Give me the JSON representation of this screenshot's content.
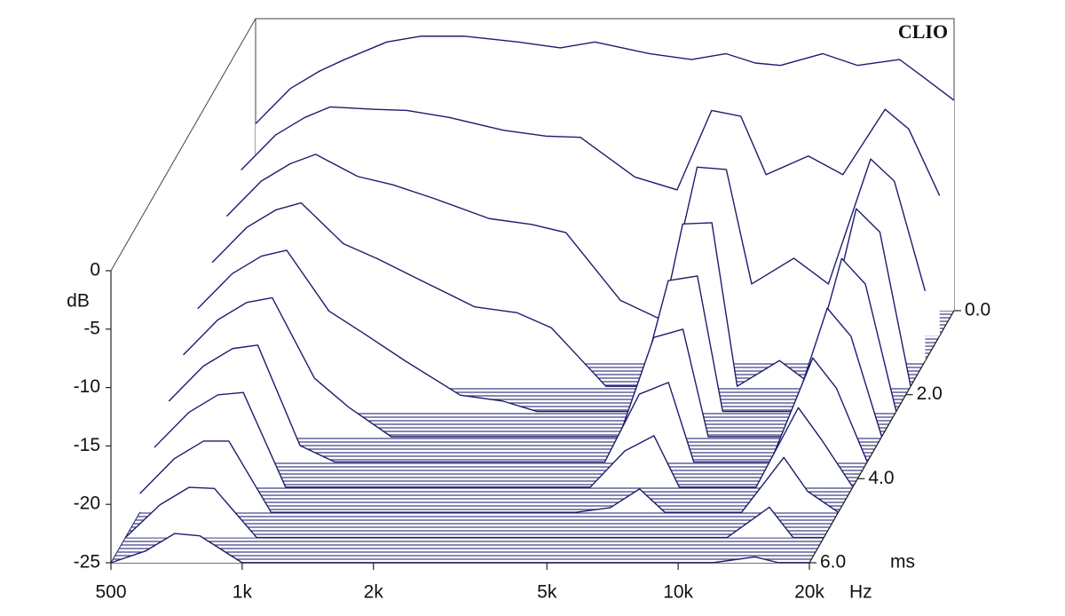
{
  "chart_data": {
    "type": "waterfall",
    "title": "CLIO",
    "xlabel": "Hz",
    "ylabel": "dB",
    "zlabel": "ms",
    "xscale": "log",
    "color": "#1c1c6e",
    "xlim": [
      500,
      20000
    ],
    "xticks": [
      500,
      {
        "value": 1000,
        "label": "1k"
      },
      {
        "value": 2000,
        "label": "2k"
      },
      {
        "value": 5000,
        "label": "5k"
      },
      {
        "value": 10000,
        "label": "10k"
      },
      {
        "value": 20000,
        "label": "20k"
      }
    ],
    "ylim": [
      -25,
      0
    ],
    "yticks": [
      0,
      -5,
      -10,
      -15,
      -20,
      -25
    ],
    "zlim": [
      0,
      6
    ],
    "zticks": [
      {
        "value": 0,
        "label": "0.0"
      },
      {
        "value": 2,
        "label": "2.0"
      },
      {
        "value": 4,
        "label": "4.0"
      },
      {
        "value": 6,
        "label": "6.0"
      }
    ],
    "x": [
      500,
      600,
      700,
      800,
      1000,
      1200,
      1500,
      2000,
      2500,
      3000,
      4000,
      5000,
      6000,
      7000,
      8000,
      10000,
      12000,
      15000,
      17000,
      20000
    ],
    "z": [
      0,
      0.6,
      1.2,
      1.8,
      2.4,
      3.0,
      3.6,
      4.2,
      4.8,
      5.4,
      6.0
    ],
    "series": [
      {
        "values": [
          -9,
          -6,
          -4.5,
          -3.5,
          -2,
          -1.5,
          -1.5,
          -2,
          -2.5,
          -2,
          -3,
          -3.5,
          -3,
          -3.8,
          -4,
          -3,
          -4,
          -3.5,
          -5,
          -7
        ]
      },
      {
        "values": [
          -10.8,
          -7.8,
          -6.3,
          -5.4,
          -5.6,
          -5.7,
          -6.3,
          -7.4,
          -7.9,
          -8,
          -11.4,
          -12.5,
          -5.7,
          -6.2,
          -11.2,
          -9.6,
          -11.2,
          -5.6,
          -7.3,
          -13
        ]
      },
      {
        "values": [
          -12.6,
          -9.6,
          -8.1,
          -7.3,
          -9.2,
          -9.9,
          -11.1,
          -12.8,
          -13.3,
          -14,
          -19.8,
          -21.5,
          -8.4,
          -8.6,
          -18.4,
          -16.2,
          -18.4,
          -7.7,
          -9.6,
          -19
        ]
      },
      {
        "values": [
          -14.4,
          -11.4,
          -9.9,
          -9.3,
          -12.8,
          -14.1,
          -15.9,
          -18.2,
          -18.7,
          -20,
          -25,
          -25,
          -11.1,
          -11,
          -25,
          -22.8,
          -25,
          -9.8,
          -11.8,
          -25
        ]
      },
      {
        "values": [
          -16.2,
          -13.2,
          -11.7,
          -11.2,
          -16.4,
          -18.3,
          -20.7,
          -23.6,
          -24.1,
          -25,
          -25,
          -25,
          -13.8,
          -13.4,
          -25,
          -25,
          -25,
          -11.9,
          -14.1,
          -25
        ]
      },
      {
        "values": [
          -18,
          -15,
          -13.5,
          -13.1,
          -20,
          -22.5,
          -25,
          -25,
          -25,
          -25,
          -25,
          -25,
          -16.5,
          -15.8,
          -25,
          -25,
          -25,
          -14,
          -16.4,
          -25
        ]
      },
      {
        "values": [
          -19.8,
          -16.8,
          -15.3,
          -15,
          -23.6,
          -25,
          -25,
          -25,
          -25,
          -25,
          -25,
          -25,
          -19.2,
          -18.2,
          -25,
          -25,
          -25,
          -16.1,
          -18.7,
          -25
        ]
      },
      {
        "values": [
          -21.6,
          -18.6,
          -17.1,
          -16.9,
          -25,
          -25,
          -25,
          -25,
          -25,
          -25,
          -25,
          -25,
          -21.9,
          -20.6,
          -25,
          -25,
          -25,
          -18.2,
          -21,
          -25
        ]
      },
      {
        "values": [
          -23.4,
          -20.4,
          -18.9,
          -18.9,
          -25,
          -25,
          -25,
          -25,
          -25,
          -25,
          -25,
          -25,
          -24.6,
          -23,
          -25,
          -25,
          -25,
          -20.3,
          -23.2,
          -25
        ]
      },
      {
        "values": [
          -25,
          -22.2,
          -20.7,
          -20.8,
          -25,
          -25,
          -25,
          -25,
          -25,
          -25,
          -25,
          -25,
          -25,
          -25,
          -25,
          -25,
          -25,
          -22.4,
          -25,
          -25
        ]
      },
      {
        "values": [
          -25,
          -24,
          -22.5,
          -22.7,
          -25,
          -25,
          -25,
          -25,
          -25,
          -25,
          -25,
          -25,
          -25,
          -25,
          -25,
          -25,
          -25,
          -24.5,
          -25,
          -25
        ]
      }
    ]
  }
}
